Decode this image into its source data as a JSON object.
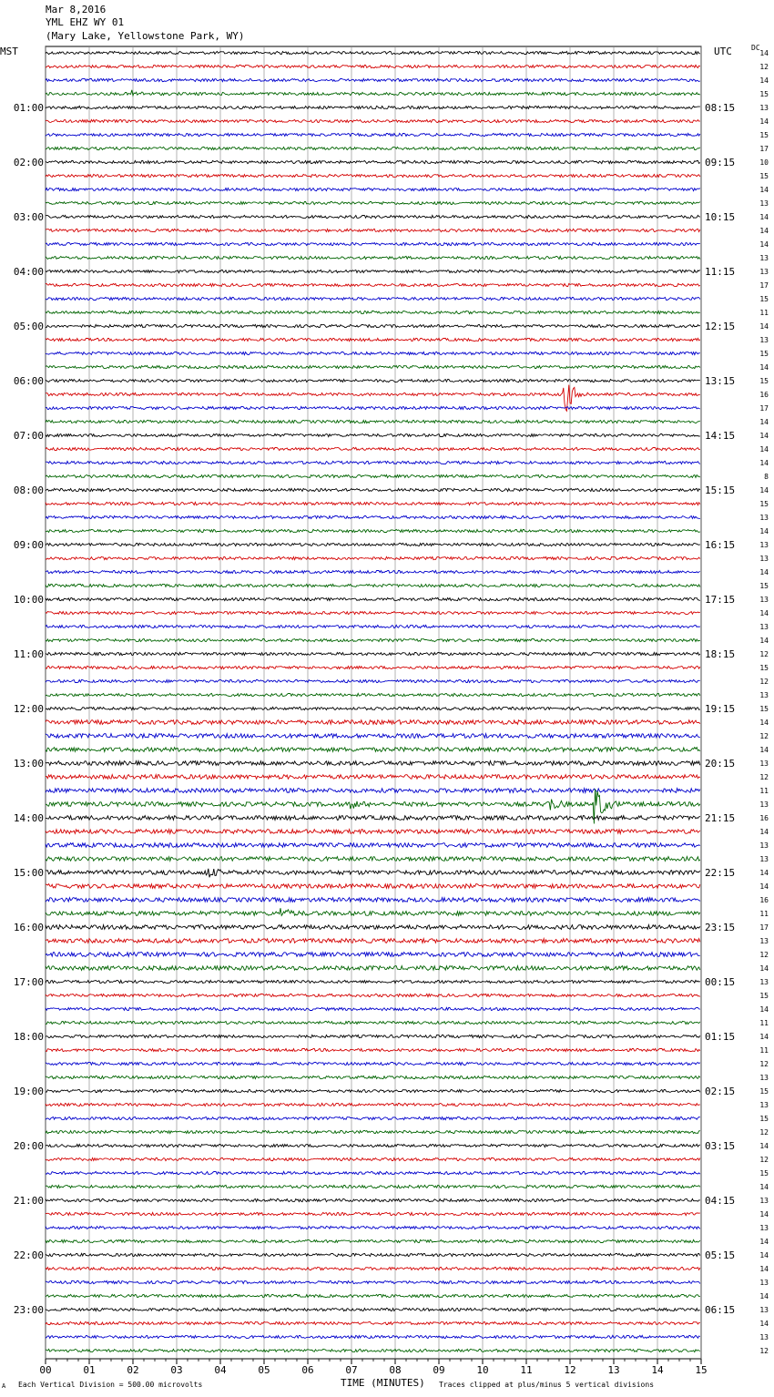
{
  "header": {
    "date": "Mar 8,2016",
    "station": "YML EHZ WY 01",
    "location": "(Mary Lake, Yellowstone Park, WY)"
  },
  "left_zone": "MST",
  "right_zone": "UTC",
  "dc_label": "DC",
  "footer": {
    "scale_note": "Each Vertical Division =  500.00 microvolts",
    "clip_note": "Traces clipped at plus/minus 5 vertical divisions",
    "xlabel": "TIME (MINUTES)",
    "corner_mark": "A"
  },
  "colors": {
    "trace_cycle": [
      "#000000",
      "#d40000",
      "#0000cc",
      "#006400"
    ],
    "grid": "#808080"
  },
  "chart_data": {
    "type": "line",
    "title": "",
    "xlabel": "TIME (MINUTES)",
    "x_ticks": [
      "00",
      "01",
      "02",
      "03",
      "04",
      "05",
      "06",
      "07",
      "08",
      "09",
      "10",
      "11",
      "12",
      "13",
      "14",
      "15"
    ],
    "xlim": [
      0,
      15
    ],
    "rows_per_hour": 4,
    "left_hour_labels": [
      "01:00",
      "02:00",
      "03:00",
      "04:00",
      "05:00",
      "06:00",
      "07:00",
      "08:00",
      "09:00",
      "10:00",
      "11:00",
      "12:00",
      "13:00",
      "14:00",
      "15:00",
      "16:00",
      "17:00",
      "18:00",
      "19:00",
      "20:00",
      "21:00",
      "22:00",
      "23:00"
    ],
    "right_hour_labels": [
      "08:15",
      "09:15",
      "10:15",
      "11:15",
      "12:15",
      "13:15",
      "14:15",
      "15:15",
      "16:15",
      "17:15",
      "18:15",
      "19:15",
      "20:15",
      "21:15",
      "22:15",
      "23:15",
      "00:15",
      "01:15",
      "02:15",
      "03:15",
      "04:15",
      "05:15",
      "06:15"
    ],
    "dc_offsets": [
      "14",
      "12",
      "14",
      "15",
      "13",
      "14",
      "15",
      "17",
      "10",
      "15",
      "14",
      "13",
      "14",
      "14",
      "14",
      "13",
      "13",
      "17",
      "15",
      "11",
      "14",
      "13",
      "15",
      "14",
      "15",
      "16",
      "17",
      "14",
      "14",
      "14",
      "14",
      "8",
      "14",
      "15",
      "13",
      "14",
      "13",
      "13",
      "14",
      "15",
      "13",
      "14",
      "13",
      "14",
      "12",
      "15",
      "12",
      "13",
      "15",
      "14",
      "12",
      "14",
      "13",
      "12",
      "11",
      "13",
      "16",
      "14",
      "13",
      "13",
      "14",
      "14",
      "16",
      "11",
      "17",
      "13",
      "12",
      "14",
      "13",
      "15",
      "14",
      "11",
      "14",
      "11",
      "12",
      "13",
      "15",
      "13",
      "15",
      "12",
      "14",
      "12",
      "15",
      "14",
      "13",
      "14",
      "13",
      "14",
      "14",
      "14",
      "13",
      "14",
      "13",
      "14",
      "13",
      "12"
    ],
    "events": [
      {
        "row": 3,
        "minute": 2.0,
        "amplitude": 0.4
      },
      {
        "row": 25,
        "minute": 11.9,
        "amplitude": 3.0
      },
      {
        "row": 55,
        "minute": 11.5,
        "amplitude": 1.2
      },
      {
        "row": 55,
        "minute": 12.6,
        "amplitude": 3.0
      },
      {
        "row": 55,
        "minute": 7.0,
        "amplitude": 0.5
      },
      {
        "row": 60,
        "minute": 3.7,
        "amplitude": 0.8
      },
      {
        "row": 63,
        "minute": 5.4,
        "amplitude": 0.7
      }
    ]
  }
}
